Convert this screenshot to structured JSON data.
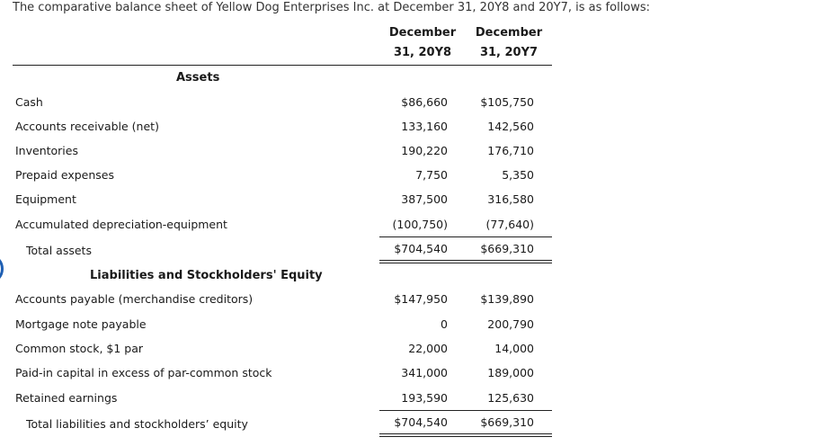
{
  "intro": "The comparative balance sheet of Yellow Dog Enterprises Inc. at December 31, 20Y8 and 20Y7, is as follows:",
  "columns": [
    {
      "line1": "December",
      "line2": "31, 20Y8"
    },
    {
      "line1": "December",
      "line2": "31, 20Y7"
    }
  ],
  "assets": {
    "heading": "Assets",
    "rows": [
      {
        "label": "Cash",
        "y8": "$86,660",
        "y7": "$105,750"
      },
      {
        "label": "Accounts receivable (net)",
        "y8": "133,160",
        "y7": "142,560"
      },
      {
        "label": "Inventories",
        "y8": "190,220",
        "y7": "176,710"
      },
      {
        "label": "Prepaid expenses",
        "y8": "7,750",
        "y7": "5,350"
      },
      {
        "label": "Equipment",
        "y8": "387,500",
        "y7": "316,580"
      },
      {
        "label": "Accumulated depreciation-equipment",
        "y8": "(100,750)",
        "y7": "(77,640)"
      }
    ],
    "total": {
      "label": "Total assets",
      "y8": "$704,540",
      "y7": "$669,310"
    }
  },
  "liabilities": {
    "heading": "Liabilities and Stockholders' Equity",
    "rows": [
      {
        "label": "Accounts payable (merchandise creditors)",
        "y8": "$147,950",
        "y7": "$139,890"
      },
      {
        "label": "Mortgage note payable",
        "y8": "0",
        "y7": "200,790"
      },
      {
        "label": "Common stock, $1 par",
        "y8": "22,000",
        "y7": "14,000"
      },
      {
        "label": "Paid-in capital in excess of par-common stock",
        "y8": "341,000",
        "y7": "189,000"
      },
      {
        "label": "Retained earnings",
        "y8": "193,590",
        "y7": "125,630"
      }
    ],
    "total": {
      "label": "Total liabilities and stockholders’ equity",
      "y8": "$704,540",
      "y7": "$669,310"
    }
  }
}
